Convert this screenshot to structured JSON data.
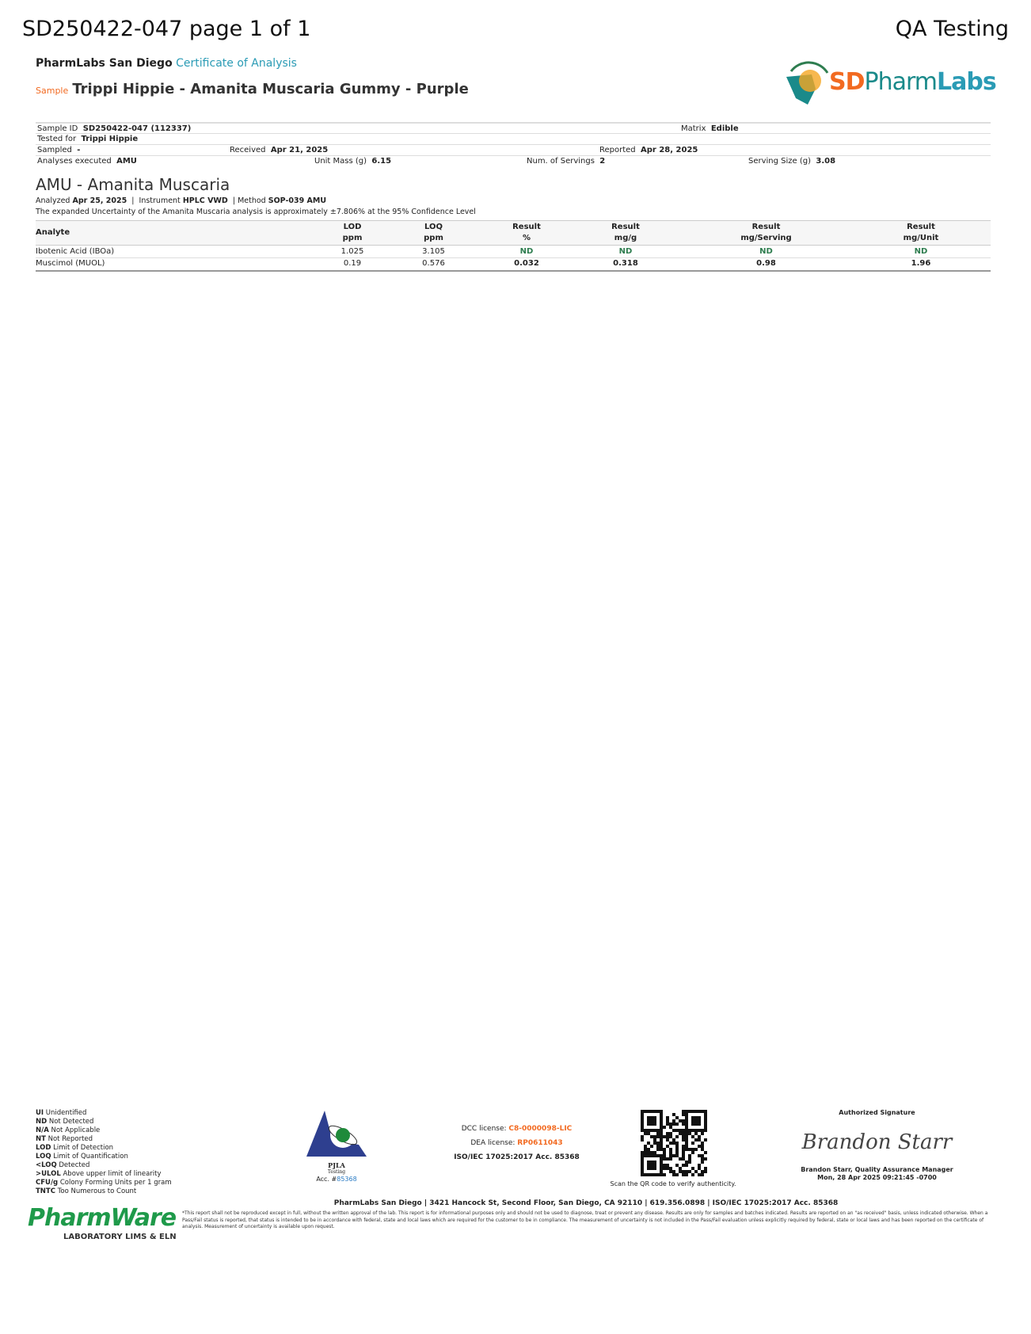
{
  "header": {
    "title": "SD250422-047 page 1 of 1",
    "right": "QA Testing",
    "lab": "PharmLabs San Diego",
    "doc_type": "Certificate of Analysis",
    "sample_label": "Sample",
    "sample_name": "Trippi Hippie - Amanita Muscaria Gummy - Purple",
    "logo_text_sd": "SD",
    "logo_text_pharm": "Pharm",
    "logo_text_labs": "Labs",
    "logo_arc": "PharmLabs"
  },
  "info": {
    "sample_id_label": "Sample ID",
    "sample_id": "SD250422-047 (112337)",
    "matrix_label": "Matrix",
    "matrix": "Edible",
    "tested_for_label": "Tested for",
    "tested_for": "Trippi Hippie",
    "sampled_label": "Sampled",
    "sampled": "-",
    "received_label": "Received",
    "received": "Apr 21, 2025",
    "reported_label": "Reported",
    "reported": "Apr 28, 2025",
    "analyses_label": "Analyses executed",
    "analyses": "AMU",
    "unit_mass_label": "Unit Mass (g)",
    "unit_mass": "6.15",
    "servings_label": "Num. of Servings",
    "servings": "2",
    "serving_size_label": "Serving Size (g)",
    "serving_size": "3.08"
  },
  "section": {
    "title": "AMU - Amanita Muscaria",
    "analyzed_label": "Analyzed",
    "analyzed": "Apr 25, 2025",
    "instrument_label": "Instrument",
    "instrument": "HPLC VWD",
    "method_label": "Method",
    "method": "SOP-039 AMU",
    "uncertainty": "The expanded Uncertainty of the Amanita Muscaria analysis is approximately ±7.806% at the 95% Confidence Level"
  },
  "table": {
    "headers": [
      [
        "Analyte",
        ""
      ],
      [
        "LOD",
        "ppm"
      ],
      [
        "LOQ",
        "ppm"
      ],
      [
        "Result",
        "%"
      ],
      [
        "Result",
        "mg/g"
      ],
      [
        "Result",
        "mg/Serving"
      ],
      [
        "Result",
        "mg/Unit"
      ]
    ],
    "rows": [
      [
        "Ibotenic Acid (IBOa)",
        "1.025",
        "3.105",
        "ND",
        "ND",
        "ND",
        "ND"
      ],
      [
        "Muscimol (MUOL)",
        "0.19",
        "0.576",
        "0.032",
        "0.318",
        "0.98",
        "1.96"
      ]
    ]
  },
  "legend": [
    [
      "UI",
      "Unidentified"
    ],
    [
      "ND",
      "Not Detected"
    ],
    [
      "N/A",
      "Not Applicable"
    ],
    [
      "NT",
      "Not Reported"
    ],
    [
      "LOD",
      "Limit of Detection"
    ],
    [
      "LOQ",
      "Limit of Quantification"
    ],
    [
      "<LOQ",
      "Detected"
    ],
    [
      ">ULOL",
      "Above upper limit of linearity"
    ],
    [
      "CFU/g",
      "Colony Forming Units per 1 gram"
    ],
    [
      "TNTC",
      "Too Numerous to Count"
    ]
  ],
  "pjla": {
    "name": "PJLA",
    "sub": "Testing",
    "acc_label": "Acc. #",
    "acc": "85368"
  },
  "licenses": {
    "dcc_label": "DCC license:",
    "dcc": "C8-0000098-LIC",
    "dea_label": "DEA license:",
    "dea": "RP0611043",
    "iso": "ISO/IEC 17025:2017 Acc. 85368"
  },
  "qr": {
    "caption": "Scan the QR code to verify authenticity."
  },
  "signature": {
    "label": "Authorized Signature",
    "script": "Brandon Starr",
    "name": "Brandon Starr, Quality Assurance Manager",
    "date": "Mon, 28 Apr 2025 09:21:45 -0700"
  },
  "footer": {
    "address": "PharmLabs San Diego | 3421 Hancock St, Second Floor, San Diego, CA 92110 | 619.356.0898 | ISO/IEC 17025:2017 Acc. 85368",
    "disclaimer": "*This report shall not be reproduced except in full, without the written approval of the lab. This report is for informational purposes only and should not be used to diagnose, treat or prevent any disease. Results are only for samples and batches indicated. Results are reported on an \"as received\" basis, unless indicated otherwise. When a Pass/Fail status is reported, that status is intended to be in accordance with federal, state and local laws which are required for the customer to be in compliance. The measurement of uncertainty is not included in the Pass/Fail evaluation unless explicitly required by federal, state or local laws and has been reported on the certificate of analysis. Measurement of uncertainty is available upon request.",
    "pharmware": "PharmWare",
    "pharmware_sub": "LABORATORY LIMS & ELN"
  },
  "colors": {
    "orange": "#f26a21",
    "teal": "#2a9bb5",
    "green": "#2e7d4f",
    "navy": "#2e3f8f"
  }
}
